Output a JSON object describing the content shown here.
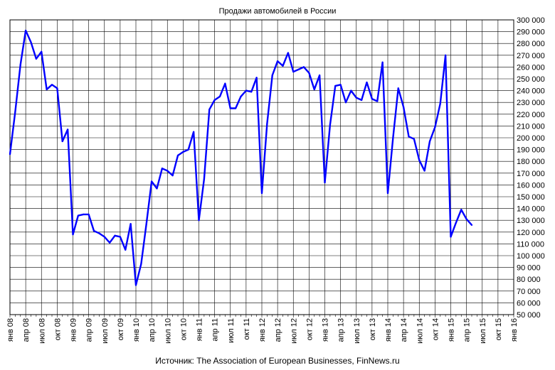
{
  "chart_data": {
    "type": "line",
    "title": "Продажи автомобилей в России",
    "source": "Источник: The Association of European Businesses, FinNews.ru",
    "ylim": [
      50000,
      300000
    ],
    "ystep": 10000,
    "grid": true,
    "legend": "none",
    "line_color": "#0000ff",
    "x_tick_labels": [
      "янв 08",
      "апр 08",
      "июл 08",
      "окт 08",
      "янв 09",
      "апр 09",
      "июл 09",
      "окт 09",
      "янв 10",
      "апр 10",
      "июл 10",
      "окт 10",
      "янв 11",
      "апр 11",
      "июл 11",
      "окт 11",
      "янв 12",
      "апр 12",
      "июл 12",
      "окт 12",
      "янв 13",
      "апр 13",
      "июл 13",
      "окт 13",
      "янв 14",
      "апр 14",
      "июл 14",
      "окт 14",
      "янв 15",
      "апр 15",
      "июл 15",
      "окт 15",
      "янв 16"
    ],
    "y_tick_labels": [
      "50 000",
      "60 000",
      "70 000",
      "80 000",
      "90 000",
      "100 000",
      "110 000",
      "120 000",
      "130 000",
      "140 000",
      "150 000",
      "160 000",
      "170 000",
      "180 000",
      "190 000",
      "200 000",
      "210 000",
      "220 000",
      "230 000",
      "240 000",
      "250 000",
      "260 000",
      "270 000",
      "280 000",
      "290 000",
      "300 000"
    ],
    "series": [
      {
        "values": [
          186000,
          222000,
          262000,
          291000,
          281000,
          267000,
          273000,
          241000,
          245000,
          242000,
          197000,
          207000,
          118000,
          134000,
          135000,
          135000,
          121000,
          119000,
          116000,
          111000,
          117000,
          116000,
          105000,
          127000,
          75000,
          93000,
          127000,
          163000,
          157000,
          174000,
          172000,
          168000,
          185000,
          188000,
          190000,
          205000,
          130000,
          165000,
          224000,
          232000,
          235000,
          246000,
          225000,
          225000,
          235000,
          240000,
          239000,
          251000,
          153000,
          212000,
          253000,
          265000,
          261000,
          272000,
          256000,
          258000,
          260000,
          255000,
          241000,
          253000,
          162000,
          211000,
          244000,
          245000,
          230000,
          240000,
          234000,
          232000,
          247000,
          233000,
          231000,
          264000,
          153000,
          200000,
          242000,
          226000,
          201000,
          199000,
          181000,
          172000,
          197000,
          209000,
          229000,
          270000,
          116000,
          128000,
          139000,
          131000,
          126000
        ]
      }
    ]
  }
}
